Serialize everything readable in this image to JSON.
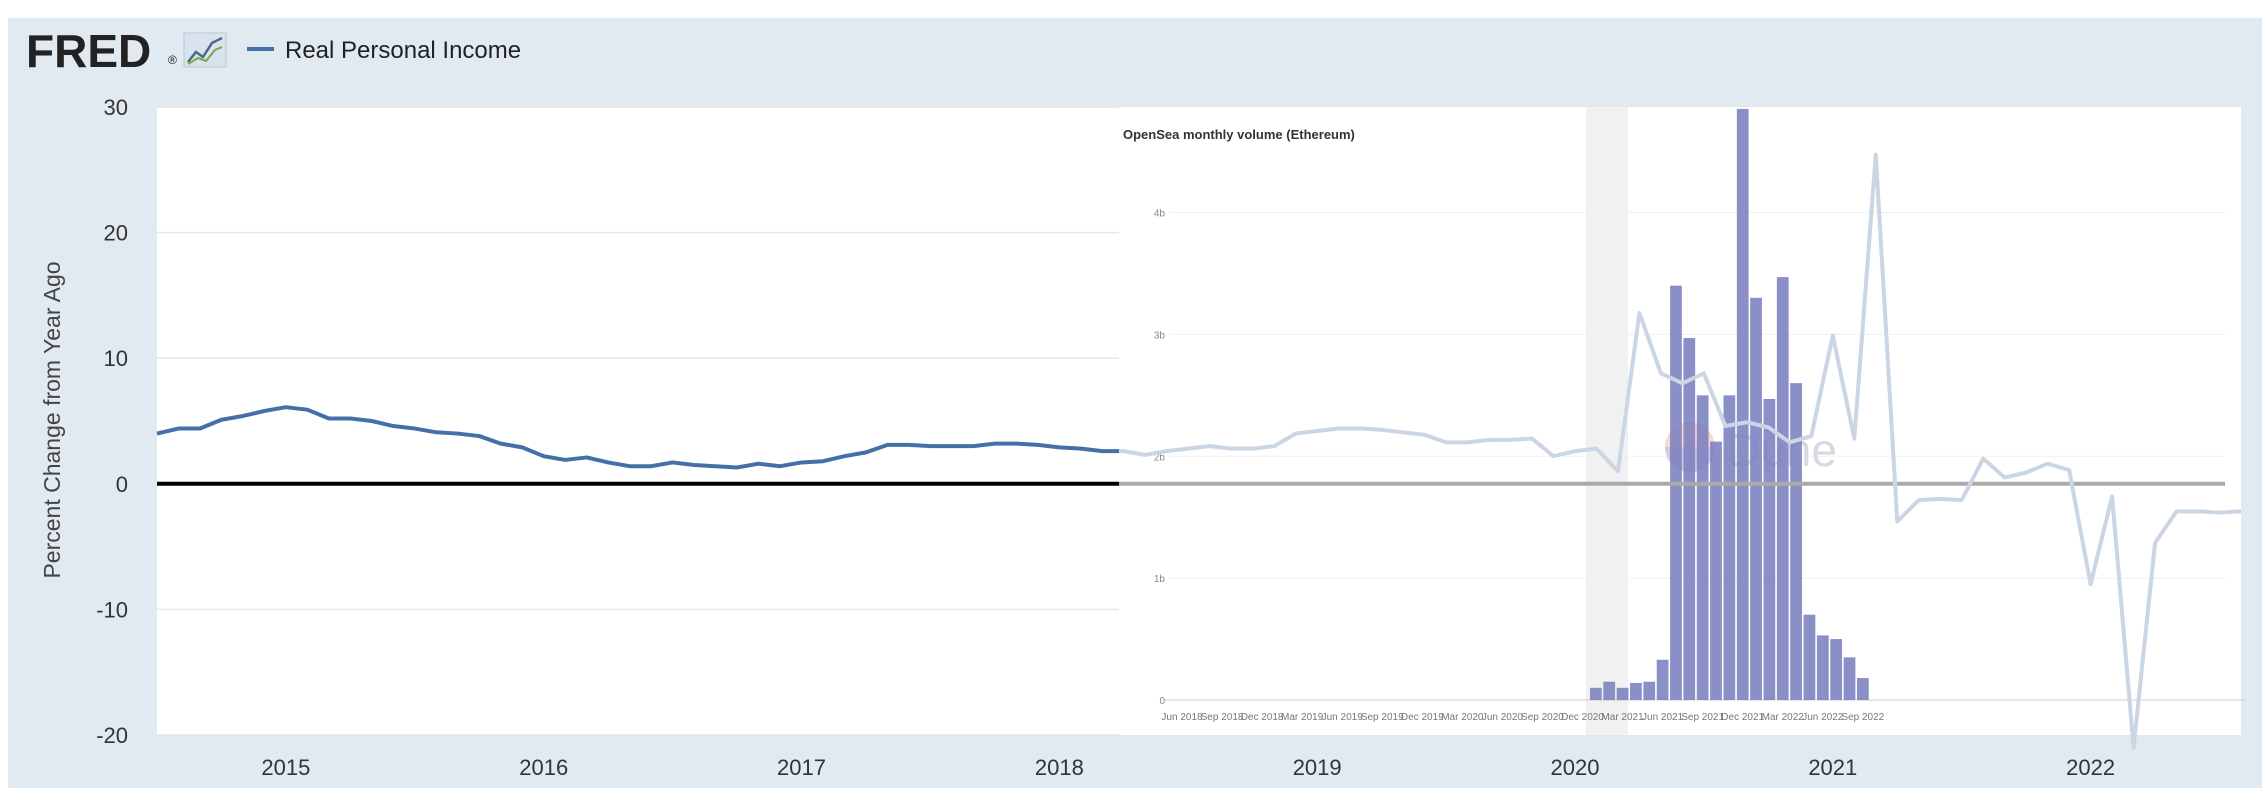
{
  "colors": {
    "frame_bg": "#e1e9f1",
    "plot_bg": "#ffffff",
    "fred_line": "#4570a7",
    "zero_line": "#000000",
    "dune_bar": "#7b7fbf",
    "dune_line": "#cad6e4",
    "dune_zero": "#aaaaaa",
    "logo_text": "#222222"
  },
  "header": {
    "logo_text": "FRED",
    "logo_mark": "®",
    "logo_icon": "trend-chart-icon",
    "legend_label": "Real Personal Income"
  },
  "chart_data": [
    {
      "type": "line",
      "title": "",
      "xlabel": "",
      "ylabel": "Percent Change from Year Ago",
      "ylim": [
        -20,
        30
      ],
      "xlim": [
        "2014-07",
        "2022-08"
      ],
      "yticks": [
        "30",
        "20",
        "10",
        "0",
        "-10",
        "-20"
      ],
      "xticks": [
        "2015",
        "2016",
        "2017",
        "2018",
        "2019",
        "2020",
        "2021",
        "2022"
      ],
      "grid": true,
      "legend": "top-left",
      "series": [
        {
          "name": "Real Personal Income",
          "x": [
            "2014-07",
            "2014-08",
            "2014-09",
            "2014-10",
            "2014-11",
            "2014-12",
            "2015-01",
            "2015-02",
            "2015-03",
            "2015-04",
            "2015-05",
            "2015-06",
            "2015-07",
            "2015-08",
            "2015-09",
            "2015-10",
            "2015-11",
            "2015-12",
            "2016-01",
            "2016-02",
            "2016-03",
            "2016-04",
            "2016-05",
            "2016-06",
            "2016-07",
            "2016-08",
            "2016-09",
            "2016-10",
            "2016-11",
            "2016-12",
            "2017-01",
            "2017-02",
            "2017-03",
            "2017-04",
            "2017-05",
            "2017-06",
            "2017-07",
            "2017-08",
            "2017-09",
            "2017-10",
            "2017-11",
            "2017-12",
            "2018-01",
            "2018-02",
            "2018-03",
            "2018-04",
            "2018-05",
            "2018-06",
            "2018-07",
            "2018-08",
            "2018-09",
            "2018-10",
            "2018-11",
            "2018-12",
            "2019-01",
            "2019-02",
            "2019-03",
            "2019-04",
            "2019-05",
            "2019-06",
            "2019-07",
            "2019-08",
            "2019-09",
            "2019-10",
            "2019-11",
            "2019-12",
            "2020-01",
            "2020-02",
            "2020-03",
            "2020-04",
            "2020-05",
            "2020-06",
            "2020-07",
            "2020-08",
            "2020-09",
            "2020-10",
            "2020-11",
            "2020-12",
            "2021-01",
            "2021-02",
            "2021-03",
            "2021-04",
            "2021-05",
            "2021-06",
            "2021-07",
            "2021-08",
            "2021-09",
            "2021-10",
            "2021-11",
            "2021-12",
            "2022-01",
            "2022-02",
            "2022-03",
            "2022-04",
            "2022-05",
            "2022-06",
            "2022-07",
            "2022-08"
          ],
          "values": [
            4.0,
            4.4,
            4.4,
            5.1,
            5.4,
            5.8,
            6.1,
            5.9,
            5.2,
            5.2,
            5.0,
            4.6,
            4.4,
            4.1,
            4.0,
            3.8,
            3.2,
            2.9,
            2.2,
            1.9,
            2.1,
            1.7,
            1.4,
            1.4,
            1.7,
            1.5,
            1.4,
            1.3,
            1.6,
            1.4,
            1.7,
            1.8,
            2.2,
            2.5,
            3.1,
            3.1,
            3.0,
            3.0,
            3.0,
            3.2,
            3.2,
            3.1,
            2.9,
            2.8,
            2.6,
            2.6,
            2.3,
            2.6,
            2.8,
            3.0,
            2.8,
            2.8,
            3.0,
            4.0,
            4.2,
            4.4,
            4.4,
            4.3,
            4.1,
            3.9,
            3.3,
            3.3,
            3.5,
            3.5,
            3.6,
            2.2,
            2.6,
            2.8,
            1.0,
            13.6,
            8.8,
            8.0,
            8.8,
            4.6,
            4.9,
            4.5,
            3.3,
            3.8,
            11.8,
            3.6,
            26.2,
            -3.0,
            -1.3,
            -1.2,
            -1.3,
            2.0,
            0.5,
            0.9,
            1.6,
            1.1,
            -8.0,
            -1.0,
            -21.0,
            -4.7,
            -2.2,
            -2.2,
            -2.3,
            -2.2
          ]
        }
      ]
    },
    {
      "type": "bar",
      "title": "OpenSea monthly volume (Ethereum)",
      "xlabel": "",
      "ylabel": "",
      "ylim": [
        0,
        4.8
      ],
      "yticks": [
        "4b",
        "3b",
        "2b",
        "1b",
        "0"
      ],
      "xticks": [
        "Jun 2018",
        "Sep 2018",
        "Dec 2018",
        "Mar 2019",
        "Jun 2019",
        "Sep 2019",
        "Dec 2019",
        "Mar 2020",
        "Jun 2020",
        "Sep 2020",
        "Dec 2020",
        "Mar 2021",
        "Jun 2021",
        "Sep 2021",
        "Dec 2021",
        "Mar 2022",
        "Jun 2022",
        "Sep 2022"
      ],
      "watermark": "Dune",
      "series": [
        {
          "name": "",
          "x": [
            "2021-01",
            "2021-02",
            "2021-03",
            "2021-04",
            "2021-05",
            "2021-06",
            "2021-07",
            "2021-08",
            "2021-09",
            "2021-10",
            "2021-11",
            "2021-12",
            "2022-01",
            "2022-02",
            "2022-03",
            "2022-04",
            "2022-05",
            "2022-06",
            "2022-07",
            "2022-08",
            "2022-09",
            "2022-10"
          ],
          "values": [
            0.1,
            0.15,
            0.1,
            0.14,
            0.15,
            0.33,
            3.4,
            2.97,
            2.5,
            2.12,
            2.5,
            4.85,
            3.3,
            2.47,
            3.47,
            2.6,
            0.7,
            0.53,
            0.5,
            0.35,
            0.18,
            0.0
          ]
        }
      ]
    }
  ]
}
